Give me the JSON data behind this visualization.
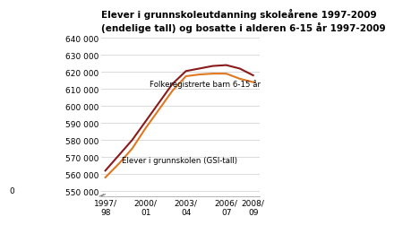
{
  "title": "Elever i grunnskoleutdanning skoleårene 1997-2009\n(endelige tall) og bosatte i alderen 6-15 år 1997-2009",
  "x_labels": [
    "1997/\n98",
    "2000/\n01",
    "2003/\n04",
    "2006/\n07",
    "2008/\n09"
  ],
  "x_ticks": [
    0,
    3,
    6,
    9,
    11
  ],
  "years": [
    0,
    1,
    2,
    3,
    4,
    5,
    6,
    7,
    8,
    9,
    10,
    11
  ],
  "folkeregistrerte": [
    562000,
    571000,
    580000,
    591000,
    602000,
    613000,
    620500,
    622000,
    623500,
    624000,
    622000,
    618000
  ],
  "gsi_tall": [
    558000,
    566000,
    575000,
    587000,
    598000,
    609000,
    617500,
    618500,
    619000,
    619000,
    616000,
    614000
  ],
  "color_folk": "#8B1A1A",
  "color_gsi": "#E07820",
  "ylim_bottom": 547000,
  "ylim_top": 642000,
  "ytick_vals": [
    550000,
    560000,
    570000,
    580000,
    590000,
    600000,
    610000,
    620000,
    630000,
    640000
  ],
  "label_folk": "Folkeregistrerte barn 6-15 år",
  "label_gsi": "Elever i grunnskolen (GSI-tall)",
  "background_color": "#ffffff",
  "grid_color": "#cccccc"
}
